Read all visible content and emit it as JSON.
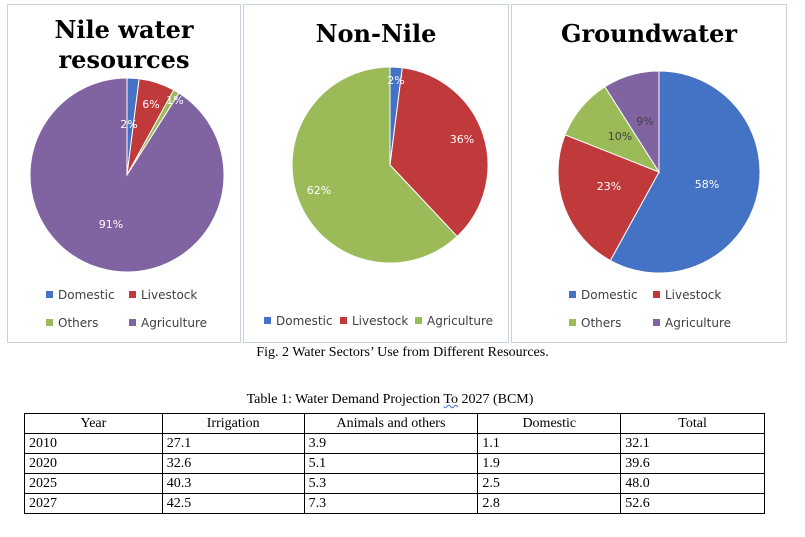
{
  "chart_data": [
    {
      "type": "pie",
      "title": "Nile water resources",
      "title_lines": [
        "Nile water",
        "resources"
      ],
      "slices": [
        {
          "label": "Domestic",
          "value": 2,
          "display": "2%",
          "color": "#4472c4"
        },
        {
          "label": "Livestock",
          "value": 6,
          "display": "6%",
          "color": "#c0393b"
        },
        {
          "label": "Others",
          "value": 1,
          "display": "1%",
          "color": "#9bbb59"
        },
        {
          "label": "Agriculture",
          "value": 91,
          "display": "91%",
          "color": "#8064a2"
        }
      ],
      "legend": "bottom"
    },
    {
      "type": "pie",
      "title": "Non-Nile",
      "slices": [
        {
          "label": "Domestic",
          "value": 2,
          "display": "2%",
          "color": "#4472c4"
        },
        {
          "label": "Livestock",
          "value": 36,
          "display": "36%",
          "color": "#c0393b"
        },
        {
          "label": "Agriculture",
          "value": 62,
          "display": "62%",
          "color": "#9bbb59"
        }
      ],
      "legend": "bottom"
    },
    {
      "type": "pie",
      "title": "Groundwater",
      "slices": [
        {
          "label": "Domestic",
          "value": 58,
          "display": "58%",
          "color": "#4472c4"
        },
        {
          "label": "Livestock",
          "value": 23,
          "display": "23%",
          "color": "#c0393b"
        },
        {
          "label": "Others",
          "value": 10,
          "display": "10%",
          "color": "#9bbb59"
        },
        {
          "label": "Agriculture",
          "value": 9,
          "display": "9%",
          "color": "#8064a2"
        }
      ],
      "legend": "bottom"
    }
  ],
  "figure_caption": "Fig. 2 Water Sectors’ Use from Different Resources.",
  "table": {
    "caption_before": "Table 1: Water Demand Projection ",
    "caption_underlined": "To",
    "caption_after": " 2027 (BCM)",
    "headers": [
      "Year",
      "Irrigation",
      "Animals and others",
      "Domestic",
      "Total"
    ],
    "rows": [
      [
        "2010",
        "27.1",
        "3.9",
        "1.1",
        "32.1"
      ],
      [
        "2020",
        "32.6",
        "5.1",
        "1.9",
        "39.6"
      ],
      [
        "2025",
        "40.3",
        "5.3",
        "2.5",
        "48.0"
      ],
      [
        "2027",
        "42.5",
        "7.3",
        "2.8",
        "52.6"
      ]
    ]
  }
}
